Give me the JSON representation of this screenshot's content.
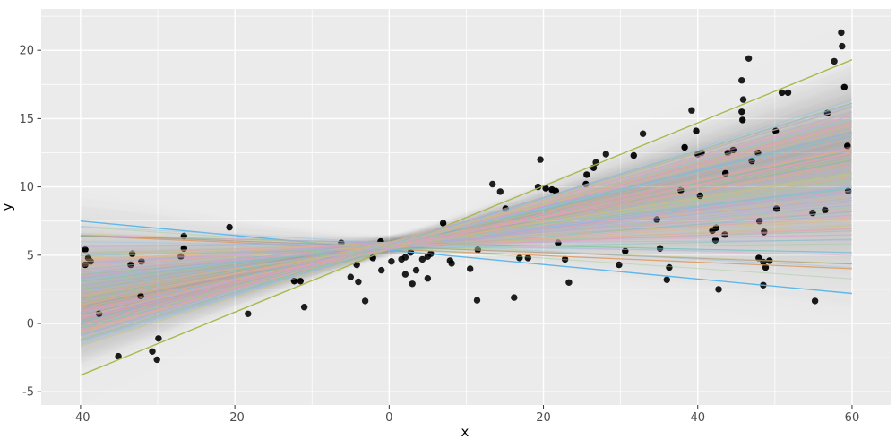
{
  "chart_data": {
    "type": "scatter",
    "title": "",
    "xlabel": "x",
    "ylabel": "y",
    "x_ticks": [
      -40,
      -20,
      0,
      20,
      40,
      60
    ],
    "y_ticks": [
      -5,
      0,
      5,
      10,
      15,
      20
    ],
    "x_minor_ticks": [
      -30,
      -10,
      10,
      30,
      50
    ],
    "y_minor_ticks": [
      -2.5,
      2.5,
      7.5,
      12.5,
      17.5,
      22.5
    ],
    "xlim": [
      -45.1,
      65.0
    ],
    "ylim": [
      -5.97,
      23.03
    ],
    "line_x_range": [
      -40,
      60
    ],
    "grid": "on",
    "legend": "none",
    "style": {
      "panel_bg": "#EBEBEB",
      "grid_color": "#FFFFFF",
      "tick_color": "#333333",
      "tick_label_color": "#4D4D4D",
      "point_color": "#000000",
      "point_radius": 3.7,
      "point_opacity": 0.88,
      "bulk_line_alpha": 0.45,
      "bulk_line_width": 1.1,
      "ribbon_color": "#5F5F5F",
      "ribbon_alpha": 0.0055
    },
    "ribbon_halfwidth": {
      "w0": 0.55,
      "k": 0.05,
      "xc": 2
    },
    "line_palette": [
      "#ED9DC3",
      "#F2A294",
      "#E9B273",
      "#CDC66E",
      "#9ECF94",
      "#6CC6B8",
      "#8FC3E6",
      "#A3ADE0",
      "#BDA6DB",
      "#E39AD6"
    ],
    "points": [
      [
        -39.4,
        5.4
      ],
      [
        -39.0,
        4.8
      ],
      [
        -38.7,
        4.55
      ],
      [
        -39.4,
        4.3
      ],
      [
        -37.6,
        0.7
      ],
      [
        -35.1,
        -2.4
      ],
      [
        -33.3,
        5.1
      ],
      [
        -33.5,
        4.3
      ],
      [
        -32.1,
        4.55
      ],
      [
        -32.2,
        2.0
      ],
      [
        -30.7,
        -2.05
      ],
      [
        -30.1,
        -2.65
      ],
      [
        -29.9,
        -1.1
      ],
      [
        -27.0,
        4.9
      ],
      [
        -26.6,
        6.4
      ],
      [
        -26.6,
        5.5
      ],
      [
        -20.7,
        7.05
      ],
      [
        -18.3,
        0.7
      ],
      [
        -12.3,
        3.1
      ],
      [
        -11.5,
        3.1
      ],
      [
        -11.0,
        1.2
      ],
      [
        -6.2,
        5.9
      ],
      [
        -5.0,
        3.4
      ],
      [
        -4.2,
        4.3
      ],
      [
        -4.0,
        3.05
      ],
      [
        -3.1,
        1.65
      ],
      [
        -2.1,
        4.8
      ],
      [
        -1.1,
        6.0
      ],
      [
        -1.0,
        3.9
      ],
      [
        0.3,
        4.55
      ],
      [
        1.6,
        4.7
      ],
      [
        2.1,
        4.85
      ],
      [
        2.8,
        5.2
      ],
      [
        2.1,
        3.6
      ],
      [
        3.0,
        2.9
      ],
      [
        3.5,
        3.9
      ],
      [
        5.0,
        3.3
      ],
      [
        4.3,
        4.7
      ],
      [
        5.0,
        4.9
      ],
      [
        5.4,
        5.1
      ],
      [
        7.0,
        7.35
      ],
      [
        7.9,
        4.6
      ],
      [
        8.1,
        4.4
      ],
      [
        10.5,
        4.0
      ],
      [
        11.4,
        1.7
      ],
      [
        11.5,
        5.4
      ],
      [
        13.4,
        10.2
      ],
      [
        14.4,
        9.65
      ],
      [
        15.1,
        8.4
      ],
      [
        16.2,
        1.9
      ],
      [
        16.9,
        4.8
      ],
      [
        18.0,
        4.8
      ],
      [
        19.6,
        12.0
      ],
      [
        19.3,
        10.0
      ],
      [
        20.3,
        9.9
      ],
      [
        21.1,
        9.8
      ],
      [
        21.6,
        9.7
      ],
      [
        21.9,
        5.9
      ],
      [
        22.8,
        4.7
      ],
      [
        23.3,
        3.0
      ],
      [
        25.5,
        10.2
      ],
      [
        25.6,
        10.9
      ],
      [
        26.5,
        11.4
      ],
      [
        26.8,
        11.8
      ],
      [
        28.1,
        12.4
      ],
      [
        30.6,
        5.3
      ],
      [
        29.8,
        4.3
      ],
      [
        31.7,
        12.3
      ],
      [
        32.9,
        13.9
      ],
      [
        34.7,
        7.6
      ],
      [
        35.1,
        5.5
      ],
      [
        36.0,
        3.2
      ],
      [
        36.3,
        4.1
      ],
      [
        37.8,
        9.75
      ],
      [
        38.3,
        12.9
      ],
      [
        39.2,
        15.6
      ],
      [
        39.8,
        14.1
      ],
      [
        40.3,
        9.35
      ],
      [
        40.0,
        12.4
      ],
      [
        40.5,
        12.5
      ],
      [
        41.9,
        6.8
      ],
      [
        42.4,
        7.0
      ],
      [
        42.3,
        6.1
      ],
      [
        42.7,
        2.5
      ],
      [
        43.5,
        6.5
      ],
      [
        43.6,
        11.0
      ],
      [
        43.9,
        12.5
      ],
      [
        44.6,
        12.7
      ],
      [
        45.7,
        15.5
      ],
      [
        45.8,
        14.9
      ],
      [
        45.9,
        16.4
      ],
      [
        45.7,
        17.8
      ],
      [
        46.6,
        19.4
      ],
      [
        47.0,
        11.9
      ],
      [
        47.8,
        12.5
      ],
      [
        48.0,
        7.5
      ],
      [
        48.6,
        6.7
      ],
      [
        47.9,
        4.8
      ],
      [
        48.5,
        4.5
      ],
      [
        49.3,
        4.6
      ],
      [
        48.8,
        4.1
      ],
      [
        48.5,
        2.8
      ],
      [
        50.1,
        14.1
      ],
      [
        50.2,
        8.4
      ],
      [
        50.9,
        16.9
      ],
      [
        51.7,
        16.9
      ],
      [
        54.9,
        8.1
      ],
      [
        55.2,
        1.65
      ],
      [
        56.5,
        8.3
      ],
      [
        56.8,
        15.4
      ],
      [
        57.7,
        19.2
      ],
      [
        58.6,
        21.3
      ],
      [
        58.7,
        20.3
      ],
      [
        59.0,
        17.3
      ],
      [
        59.4,
        13.0
      ],
      [
        59.5,
        9.7
      ]
    ],
    "special_lines": [
      {
        "name": "steep-negative-blue",
        "slope": -0.053,
        "intercept": 5.38,
        "color": "#56B4E9",
        "alpha": 0.95,
        "width": 1.4
      },
      {
        "name": "steep-positive-olive",
        "slope": 0.231,
        "intercept": 5.45,
        "color": "#A6B544",
        "alpha": 0.95,
        "width": 1.4
      },
      {
        "name": "shallow-negative-orange",
        "slope": -0.024,
        "intercept": 5.45,
        "color": "#DE9A63",
        "alpha": 0.9,
        "width": 1.2
      },
      {
        "name": "flat-teal",
        "slope": -0.012,
        "intercept": 5.92,
        "color": "#5FBFAF",
        "alpha": 0.7,
        "width": 1.1
      },
      {
        "name": "shallow-negative-tan",
        "slope": -0.021,
        "intercept": 5.62,
        "color": "#B09A86",
        "alpha": 0.8,
        "width": 1.2
      }
    ],
    "bootstrap_lines": [
      [
        0.152,
        5.62,
        0
      ],
      [
        0.031,
        5.88,
        1
      ],
      [
        0.118,
        5.45,
        2
      ],
      [
        -0.022,
        5.71,
        3
      ],
      [
        0.085,
        5.93,
        4
      ],
      [
        0.141,
        5.52,
        5
      ],
      [
        0.064,
        5.77,
        6
      ],
      [
        0.172,
        5.6,
        7
      ],
      [
        0.009,
        5.95,
        8
      ],
      [
        0.125,
        5.38,
        9
      ],
      [
        0.057,
        5.81,
        2
      ],
      [
        0.148,
        5.66,
        3
      ],
      [
        -0.038,
        5.55,
        4
      ],
      [
        0.101,
        5.9,
        5
      ],
      [
        0.076,
        5.48,
        6
      ],
      [
        0.163,
        5.73,
        7
      ],
      [
        0.042,
        5.85,
        0
      ],
      [
        0.132,
        5.57,
        1
      ],
      [
        0.018,
        5.69,
        8
      ],
      [
        0.155,
        5.92,
        9
      ],
      [
        0.092,
        5.41,
        4
      ],
      [
        0.068,
        5.79,
        5
      ],
      [
        0.179,
        5.63,
        6
      ],
      [
        0.004,
        5.86,
        7
      ],
      [
        0.113,
        5.5,
        0
      ],
      [
        0.146,
        5.74,
        1
      ],
      [
        0.037,
        5.97,
        2
      ],
      [
        0.122,
        5.44,
        3
      ],
      [
        0.083,
        5.67,
        8
      ],
      [
        -0.015,
        5.89,
        9
      ],
      [
        0.158,
        5.55,
        6
      ],
      [
        0.049,
        5.71,
        7
      ],
      [
        0.135,
        5.83,
        0
      ],
      [
        0.071,
        5.47,
        1
      ],
      [
        0.165,
        5.94,
        2
      ],
      [
        0.026,
        5.61,
        3
      ],
      [
        0.108,
        5.76,
        4
      ],
      [
        0.143,
        5.39,
        5
      ],
      [
        0.061,
        5.87,
        8
      ],
      [
        0.151,
        5.58,
        9
      ],
      [
        0.013,
        5.72,
        0
      ],
      [
        0.127,
        5.96,
        1
      ],
      [
        0.088,
        5.43,
        2
      ],
      [
        0.17,
        5.65,
        3
      ],
      [
        0.045,
        5.8,
        4
      ],
      [
        0.119,
        5.54,
        5
      ],
      [
        -0.03,
        5.91,
        6
      ],
      [
        0.138,
        5.68,
        7
      ],
      [
        0.079,
        5.36,
        8
      ],
      [
        0.16,
        5.84,
        9
      ],
      [
        0.022,
        5.59,
        2
      ],
      [
        0.105,
        5.75,
        3
      ],
      [
        0.149,
        5.46,
        4
      ],
      [
        0.066,
        5.98,
        5
      ],
      [
        0.175,
        5.62,
        6
      ],
      [
        0.036,
        5.78,
        7
      ],
      [
        0.116,
        5.51,
        0
      ],
      [
        0.095,
        5.88,
        1
      ],
      [
        0.054,
        5.64,
        8
      ],
      [
        0.144,
        5.7,
        9
      ],
      [
        0.007,
        5.42,
        4
      ],
      [
        0.13,
        5.93,
        5
      ],
      [
        0.073,
        5.56,
        6
      ],
      [
        0.167,
        5.82,
        7
      ],
      [
        0.04,
        5.49,
        0
      ],
      [
        0.111,
        5.77,
        1
      ],
      [
        0.154,
        5.6,
        2
      ],
      [
        0.028,
        5.95,
        3
      ],
      [
        0.098,
        5.53,
        8
      ],
      [
        0.136,
        5.86,
        9
      ],
      [
        -0.008,
        5.67,
        6
      ],
      [
        0.157,
        5.4,
        7
      ],
      [
        0.063,
        5.9,
        0
      ],
      [
        0.121,
        5.58,
        1
      ],
      [
        0.086,
        5.73,
        2
      ],
      [
        0.178,
        5.47,
        3
      ],
      [
        0.016,
        5.81,
        4
      ],
      [
        0.14,
        5.64,
        5
      ],
      [
        0.051,
        5.97,
        8
      ],
      [
        0.124,
        5.52,
        9
      ],
      [
        0.102,
        5.69,
        0
      ],
      [
        0.147,
        5.85,
        1
      ],
      [
        0.033,
        5.57,
        2
      ],
      [
        0.162,
        5.71,
        3
      ],
      [
        0.077,
        5.94,
        4
      ],
      [
        0.012,
        5.45,
        5
      ],
      [
        0.133,
        5.79,
        6
      ],
      [
        0.059,
        5.63,
        7
      ],
      [
        0.169,
        5.88,
        8
      ],
      [
        0.024,
        5.5,
        9
      ],
      [
        0.114,
        5.92,
        2
      ],
      [
        0.09,
        5.61,
        3
      ],
      [
        0.152,
        5.76,
        4
      ],
      [
        0.046,
        5.43,
        5
      ],
      [
        0.128,
        5.87,
        6
      ],
      [
        0.07,
        5.55,
        7
      ],
      [
        0.159,
        5.68,
        0
      ],
      [
        0.019,
        5.83,
        1
      ],
      [
        0.106,
        5.41,
        2
      ],
      [
        0.137,
        5.96,
        3
      ],
      [
        0.082,
        5.59,
        4
      ],
      [
        0.173,
        5.74,
        5
      ],
      [
        0.038,
        5.91,
        8
      ],
      [
        0.117,
        5.48,
        9
      ]
    ]
  }
}
